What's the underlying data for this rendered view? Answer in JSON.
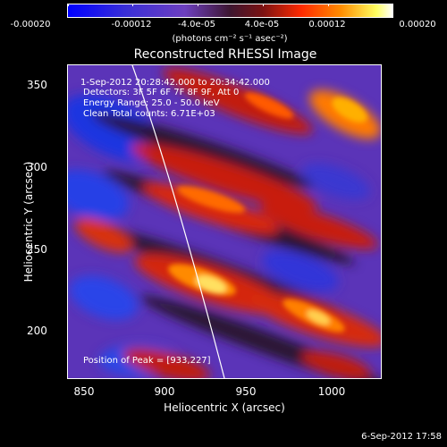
{
  "colorbar": {
    "labels": [
      "-0.00020",
      "-0.00012",
      "-4.0e-05",
      "4.0e-05",
      "0.00012",
      "0.00020"
    ],
    "units": "(photons cm⁻² s⁻¹ asec⁻²)"
  },
  "title": "Reconstructed RHESSI Image",
  "info": {
    "time_range": "1-Sep-2012 20:28:42.000 to 20:34:42.000",
    "detectors": "Detectors: 3F 5F 6F 7F 8F 9F, Att 0",
    "energy_range": "Energy Range: 25.0 - 50.0 keV",
    "clean_counts": "Clean    Total counts: 6.71E+03",
    "peak": "Position of Peak = [933,227]"
  },
  "axes": {
    "xlabel": "Heliocentric X (arcsec)",
    "ylabel": "Heliocentric Y (arcsec)",
    "xticks": [
      "850",
      "900",
      "950",
      "1000"
    ],
    "yticks": [
      "350",
      "300",
      "250",
      "200"
    ]
  },
  "timestamp": "6-Sep-2012 17:58"
}
